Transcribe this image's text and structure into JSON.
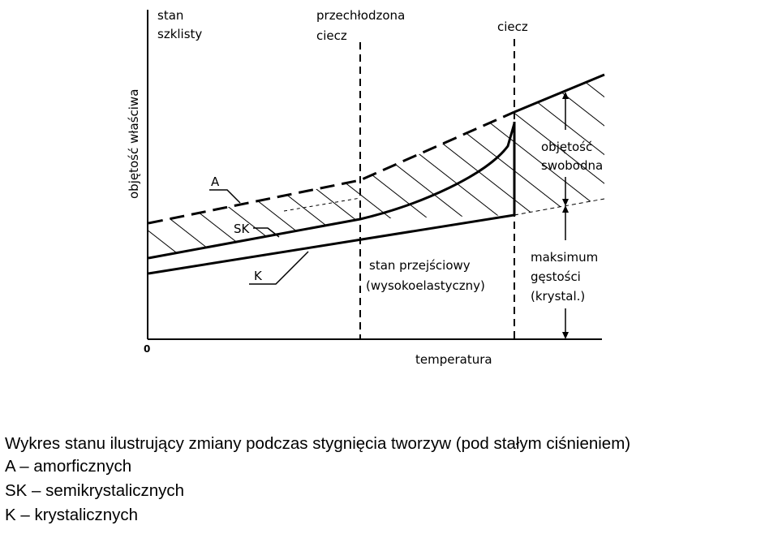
{
  "diagram": {
    "y_axis_label": "objętość właściwa",
    "x_axis_label": "temperatura",
    "origin_label": "0",
    "region_glassy": [
      "stan",
      "szklisty"
    ],
    "region_supercooled": [
      "przechłodzona",
      "ciecz"
    ],
    "region_liquid": "ciecz",
    "free_volume": [
      "objętość",
      "swobodna"
    ],
    "max_density": [
      "maksimum",
      "gęstości",
      "(krystal.)"
    ],
    "transition_state": [
      "stan przejściowy",
      "(wysokoelastyczny)"
    ],
    "curve_A": "A",
    "curve_SK": "SK",
    "curve_K": "K"
  },
  "caption": {
    "title": "Wykres stanu ilustrujący zmiany podczas stygnięcia tworzyw (pod stałym ciśnieniem)",
    "legend": [
      {
        "key": "A",
        "sep": " – ",
        "text": "amorficznych"
      },
      {
        "key": "SK",
        "sep": " – ",
        "text": "semikrystalicznych"
      },
      {
        "key": "K",
        "sep": " – ",
        "text": "krystalicznych"
      }
    ]
  }
}
